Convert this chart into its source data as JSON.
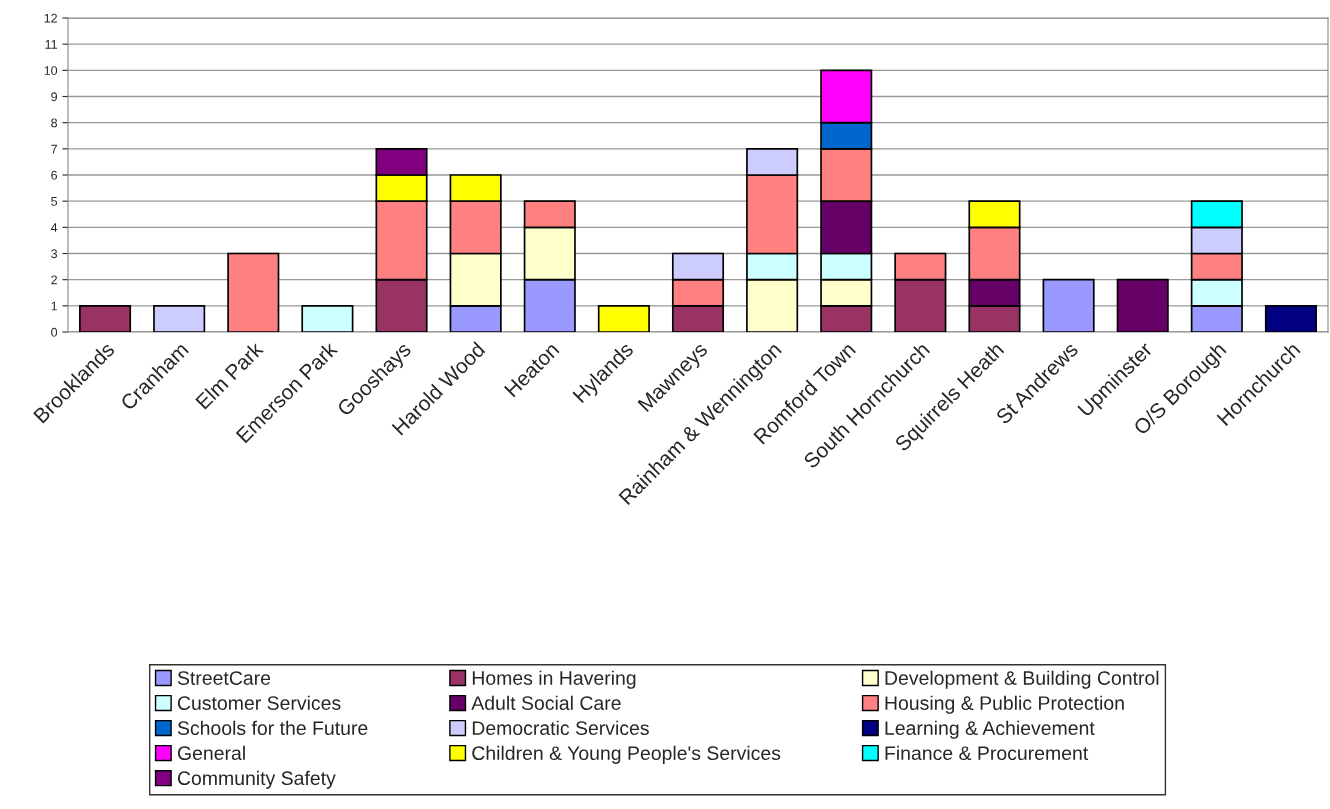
{
  "chart_data": {
    "type": "bar",
    "stacked": true,
    "categories": [
      "Brooklands",
      "Cranham",
      "Elm Park",
      "Emerson Park",
      "Gooshays",
      "Harold Wood",
      "Heaton",
      "Hylands",
      "Mawneys",
      "Rainham & Wennington",
      "Romford Town",
      "South Hornchurch",
      "Squirrels Heath",
      "St Andrews",
      "Upminster",
      "O/S Borough",
      "Hornchurch"
    ],
    "series": [
      {
        "name": "StreetCare",
        "color": "#9999ff",
        "values": [
          0,
          0,
          0,
          0,
          0,
          1,
          2,
          0,
          0,
          0,
          0,
          0,
          0,
          2,
          0,
          1,
          0
        ]
      },
      {
        "name": "Homes in Havering",
        "color": "#993366",
        "values": [
          1,
          0,
          0,
          0,
          2,
          0,
          0,
          0,
          1,
          0,
          1,
          2,
          1,
          0,
          0,
          0,
          0
        ]
      },
      {
        "name": "Development & Building Control",
        "color": "#ffffcc",
        "values": [
          0,
          0,
          0,
          0,
          0,
          2,
          2,
          0,
          0,
          2,
          1,
          0,
          0,
          0,
          0,
          0,
          0
        ]
      },
      {
        "name": "Customer Services",
        "color": "#ccffff",
        "values": [
          0,
          0,
          0,
          1,
          0,
          0,
          0,
          0,
          0,
          1,
          1,
          0,
          0,
          0,
          0,
          1,
          0
        ]
      },
      {
        "name": "Adult Social Care",
        "color": "#660066",
        "values": [
          0,
          0,
          0,
          0,
          0,
          0,
          0,
          0,
          0,
          0,
          2,
          0,
          1,
          0,
          2,
          0,
          0
        ]
      },
      {
        "name": "Housing & Public Protection",
        "color": "#ff8080",
        "values": [
          0,
          0,
          3,
          0,
          3,
          2,
          1,
          0,
          1,
          3,
          2,
          1,
          2,
          0,
          0,
          1,
          0
        ]
      },
      {
        "name": "Schools for the Future",
        "color": "#0066cc",
        "values": [
          0,
          0,
          0,
          0,
          0,
          0,
          0,
          0,
          0,
          0,
          1,
          0,
          0,
          0,
          0,
          0,
          0
        ]
      },
      {
        "name": "Democratic Services",
        "color": "#ccccff",
        "values": [
          0,
          1,
          0,
          0,
          0,
          0,
          0,
          0,
          1,
          1,
          0,
          0,
          0,
          0,
          0,
          1,
          0
        ]
      },
      {
        "name": "Learning & Achievement",
        "color": "#000080",
        "values": [
          0,
          0,
          0,
          0,
          0,
          0,
          0,
          0,
          0,
          0,
          0,
          0,
          0,
          0,
          0,
          0,
          1
        ]
      },
      {
        "name": "General",
        "color": "#ff00ff",
        "values": [
          0,
          0,
          0,
          0,
          0,
          0,
          0,
          0,
          0,
          0,
          2,
          0,
          0,
          0,
          0,
          0,
          0
        ]
      },
      {
        "name": "Children & Young People's Services",
        "color": "#ffff00",
        "values": [
          0,
          0,
          0,
          0,
          1,
          1,
          0,
          1,
          0,
          0,
          0,
          0,
          1,
          0,
          0,
          0,
          0
        ]
      },
      {
        "name": "Finance & Procurement",
        "color": "#00ffff",
        "values": [
          0,
          0,
          0,
          0,
          0,
          0,
          0,
          0,
          0,
          0,
          0,
          0,
          0,
          0,
          0,
          1,
          0
        ]
      },
      {
        "name": "Community Safety",
        "color": "#800080",
        "values": [
          0,
          0,
          0,
          0,
          1,
          0,
          0,
          0,
          0,
          0,
          0,
          0,
          0,
          0,
          0,
          0,
          0
        ]
      }
    ],
    "ylim": [
      0,
      12
    ],
    "yticks": [
      0,
      1,
      2,
      3,
      4,
      5,
      6,
      7,
      8,
      9,
      10,
      11,
      12
    ],
    "grid": "y",
    "legend": "bottom"
  }
}
